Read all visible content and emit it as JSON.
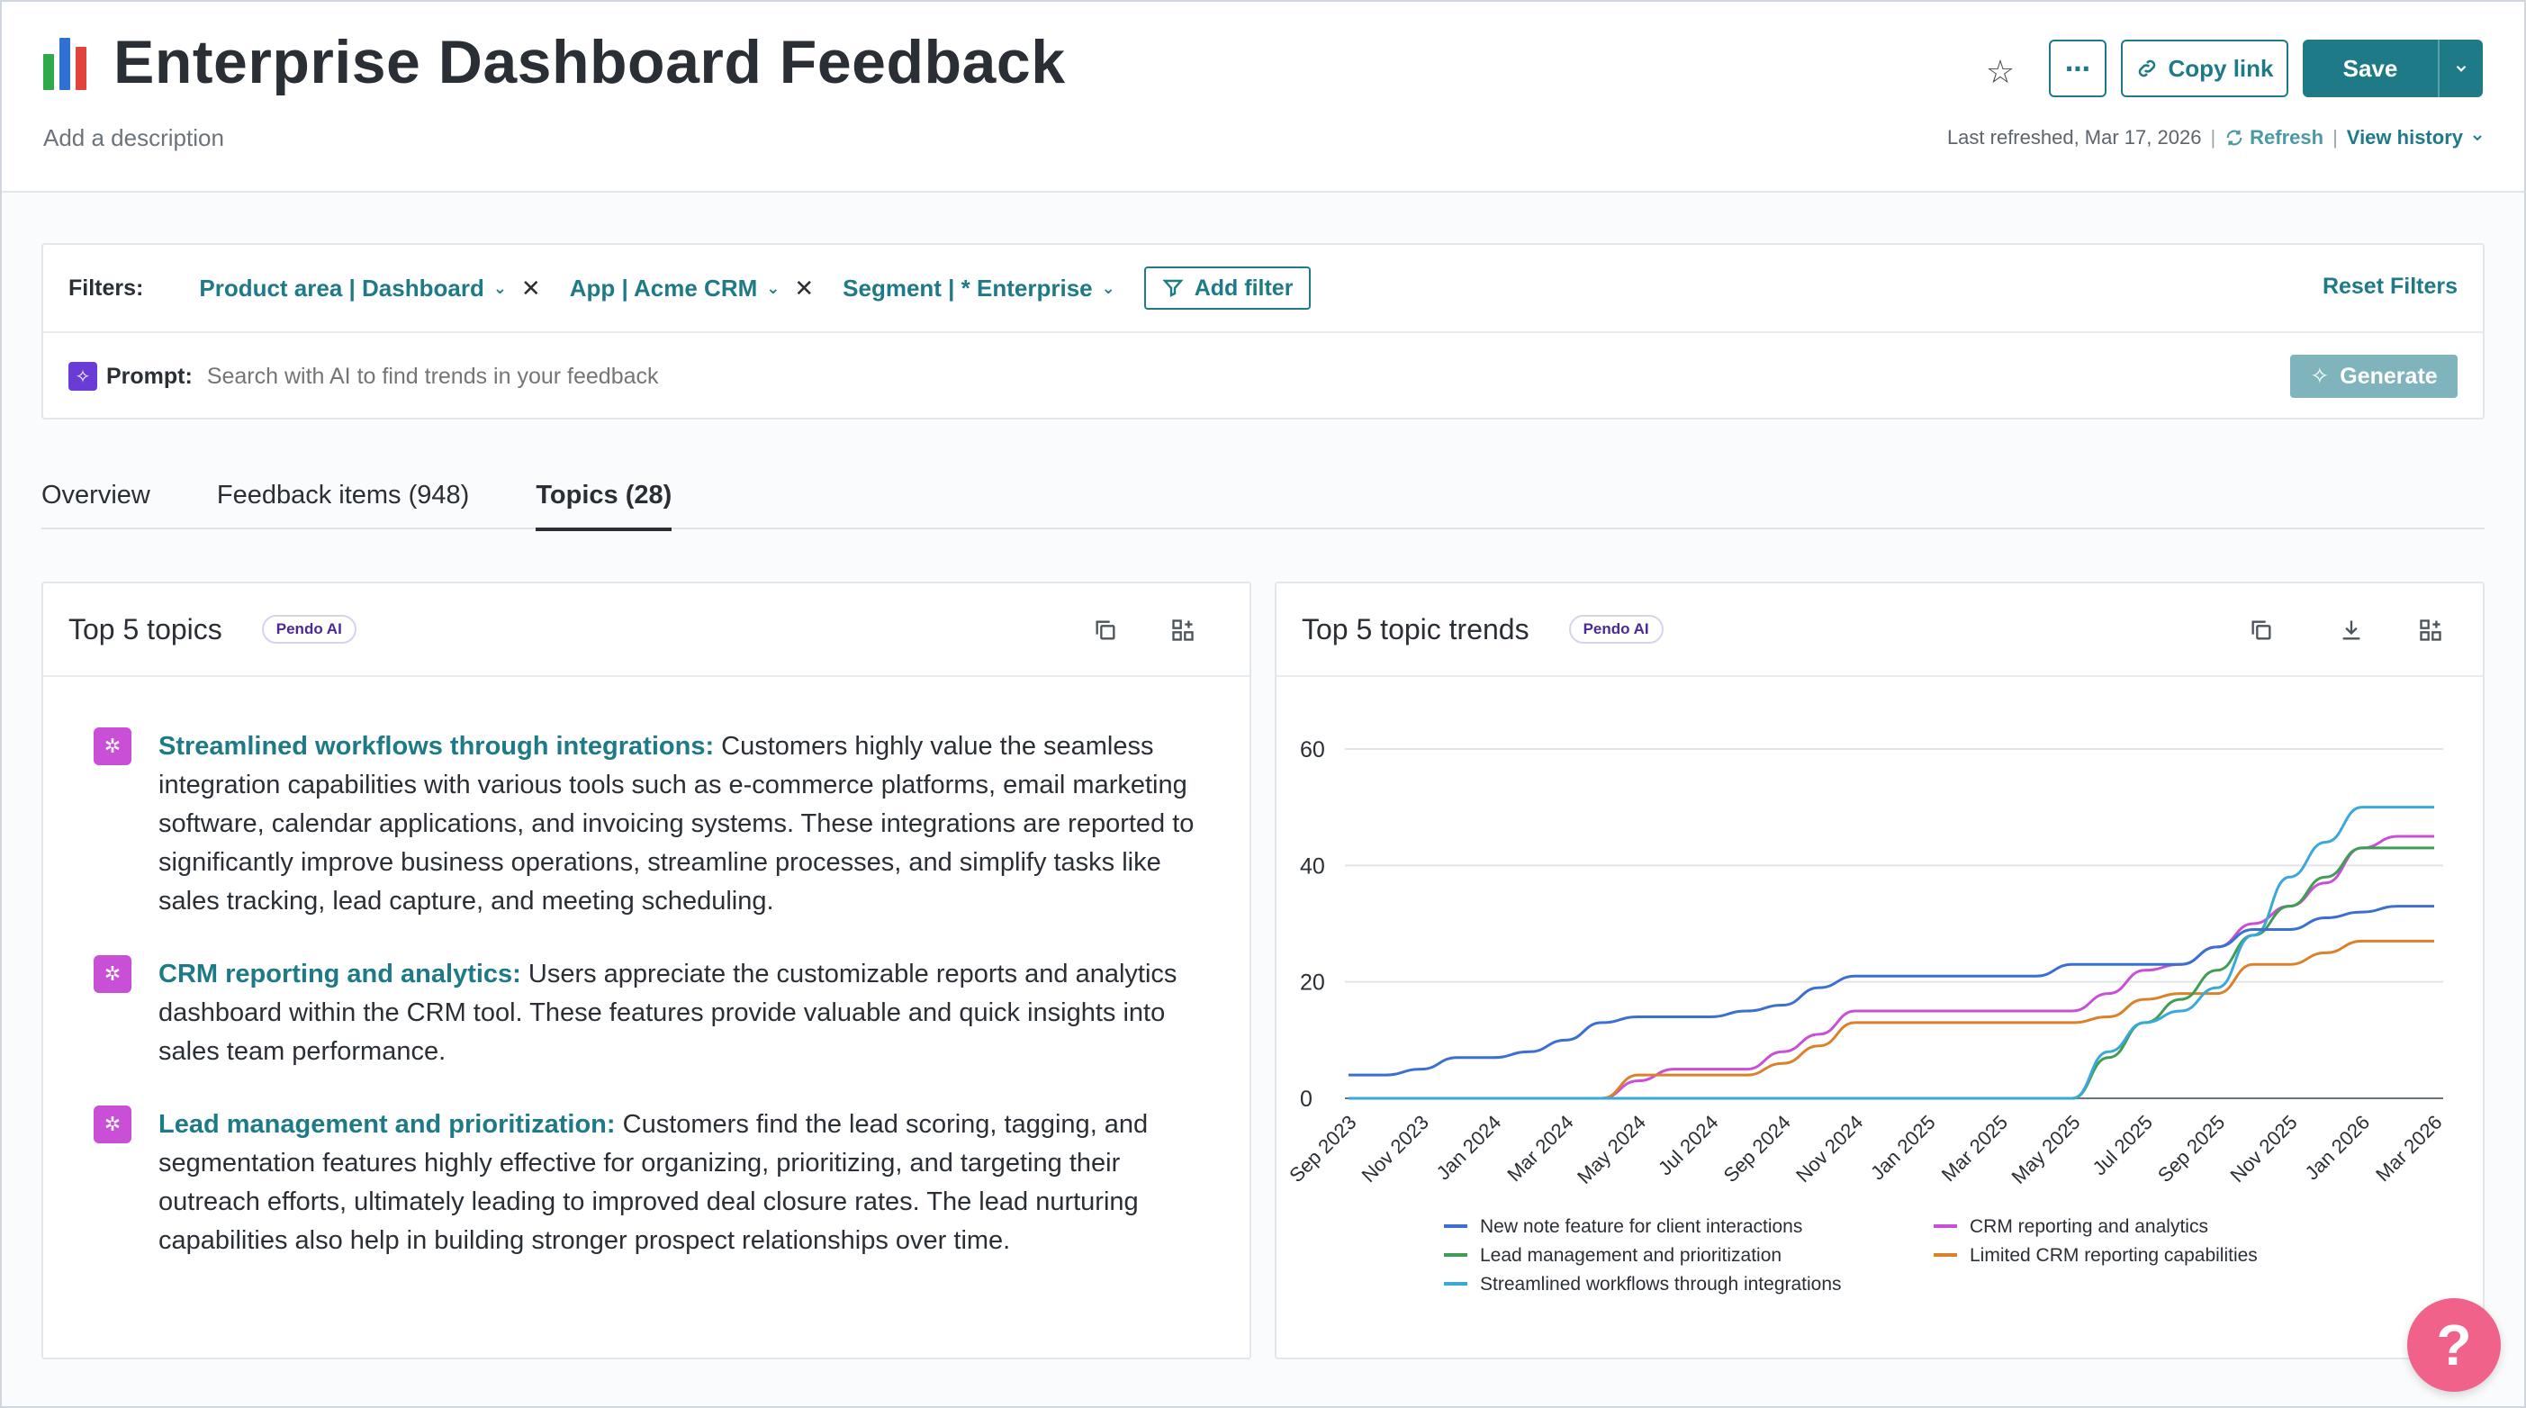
{
  "header": {
    "title": "Enterprise Dashboard Feedback",
    "description": "Add a description",
    "copy_link": "Copy link",
    "save": "Save",
    "last_refreshed": "Last refreshed, Mar 17, 2026",
    "refresh": "Refresh",
    "view_history": "View history",
    "icon_colors": [
      "#2eaa4a",
      "#2f6fd6",
      "#e0443a"
    ]
  },
  "filters": {
    "label": "Filters:",
    "chips": [
      {
        "label": "Product area | Dashboard",
        "removable": true
      },
      {
        "label": "App | Acme CRM",
        "removable": true
      },
      {
        "label": "Segment | * Enterprise",
        "removable": false
      }
    ],
    "add_filter": "Add filter",
    "reset": "Reset Filters"
  },
  "prompt": {
    "label": "Prompt:",
    "placeholder": "Search with AI to find trends in your feedback",
    "generate": "Generate"
  },
  "tabs": [
    {
      "label": "Overview",
      "active": false
    },
    {
      "label": "Feedback items (948)",
      "active": false
    },
    {
      "label": "Topics (28)",
      "active": true
    }
  ],
  "top_topics": {
    "title": "Top 5 topics",
    "badge": "Pendo AI",
    "items": [
      {
        "title": "Streamlined workflows through integrations:",
        "text": " Customers highly value the seamless integration capabilities with various tools such as e-commerce platforms, email marketing software, calendar applications, and invoicing systems. These integrations are reported to significantly improve business operations, streamline processes, and simplify tasks like sales tracking, lead capture, and meeting scheduling."
      },
      {
        "title": "CRM reporting and analytics:",
        "text": " Users appreciate the customizable reports and analytics dashboard within the CRM tool. These features provide valuable and quick insights into sales team performance."
      },
      {
        "title": "Lead management and prioritization:",
        "text": " Customers find the lead scoring, tagging, and segmentation features highly effective for organizing, prioritizing, and targeting their outreach efforts, ultimately leading to improved deal closure rates. The lead nurturing capabilities also help in building stronger prospect relationships over time."
      }
    ]
  },
  "trends": {
    "title": "Top 5 topic trends",
    "badge": "Pendo AI"
  },
  "help": "?",
  "chart_data": {
    "type": "line",
    "x": [
      "Sep 2023",
      "Oct 2023",
      "Nov 2023",
      "Dec 2023",
      "Jan 2024",
      "Feb 2024",
      "Mar 2024",
      "Apr 2024",
      "May 2024",
      "Jun 2024",
      "Jul 2024",
      "Aug 2024",
      "Sep 2024",
      "Oct 2024",
      "Nov 2024",
      "Dec 2024",
      "Jan 2025",
      "Feb 2025",
      "Mar 2025",
      "Apr 2025",
      "May 2025",
      "Jun 2025",
      "Jul 2025",
      "Aug 2025",
      "Sep 2025",
      "Oct 2025",
      "Nov 2025",
      "Dec 2025",
      "Jan 2026",
      "Feb 2026",
      "Mar 2026"
    ],
    "tick_labels": [
      "Sep 2023",
      "Nov 2023",
      "Jan 2024",
      "Mar 2024",
      "May 2024",
      "Jul 2024",
      "Sep 2024",
      "Nov 2024",
      "Jan 2025",
      "Mar 2025",
      "May 2025",
      "Jul 2025",
      "Sep 2025",
      "Nov 2025",
      "Jan 2026",
      "Mar 2026"
    ],
    "ylim": [
      0,
      60
    ],
    "yticks": [
      0,
      20,
      40,
      60
    ],
    "y_tick_labels": [
      "0",
      "20",
      "40",
      "60"
    ],
    "grid": true,
    "legend_position": "bottom",
    "series": [
      {
        "name": "New note feature for client interactions",
        "color": "#3b6fd0",
        "values": [
          4,
          4,
          5,
          7,
          7,
          8,
          10,
          13,
          14,
          14,
          14,
          15,
          16,
          19,
          21,
          21,
          21,
          21,
          21,
          21,
          23,
          23,
          23,
          23,
          26,
          29,
          29,
          31,
          32,
          33,
          33
        ]
      },
      {
        "name": "CRM reporting and analytics",
        "color": "#c84fd6",
        "values": [
          0,
          0,
          0,
          0,
          0,
          0,
          0,
          0,
          3,
          5,
          5,
          5,
          8,
          11,
          15,
          15,
          15,
          15,
          15,
          15,
          15,
          18,
          22,
          23,
          26,
          30,
          33,
          37,
          43,
          45,
          45
        ]
      },
      {
        "name": "Lead management and prioritization",
        "color": "#3f9d55",
        "values": [
          0,
          0,
          0,
          0,
          0,
          0,
          0,
          0,
          0,
          0,
          0,
          0,
          0,
          0,
          0,
          0,
          0,
          0,
          0,
          0,
          0,
          7,
          13,
          17,
          22,
          28,
          33,
          38,
          43,
          43,
          43
        ]
      },
      {
        "name": "Limited CRM reporting capabilities",
        "color": "#d9822b",
        "values": [
          0,
          0,
          0,
          0,
          0,
          0,
          0,
          0,
          4,
          4,
          4,
          4,
          6,
          9,
          13,
          13,
          13,
          13,
          13,
          13,
          13,
          14,
          17,
          18,
          18,
          23,
          23,
          25,
          27,
          27,
          27
        ]
      },
      {
        "name": "Streamlined workflows through integrations",
        "color": "#3aa8d8",
        "values": [
          0,
          0,
          0,
          0,
          0,
          0,
          0,
          0,
          0,
          0,
          0,
          0,
          0,
          0,
          0,
          0,
          0,
          0,
          0,
          0,
          0,
          8,
          13,
          15,
          19,
          28,
          38,
          44,
          50,
          50,
          50
        ]
      }
    ]
  }
}
